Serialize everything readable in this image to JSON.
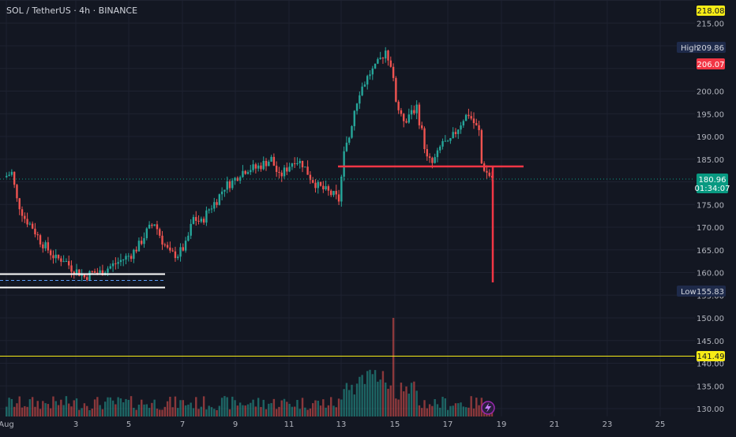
{
  "header": {
    "symbol_line": "SOL / TetherUS · 4h · BINANCE"
  },
  "indicator": {
    "icon": "lightning-icon"
  },
  "colors": {
    "background": "#131722",
    "grid": "#1e2230",
    "up": "#26a69a",
    "down": "#ef5350",
    "drawing_red": "#f23645",
    "support_yellow": "#f7ec16",
    "price_label_green": "#089981",
    "white_box": "#ffffff"
  },
  "price_labels": {
    "top_yellow": "218.08",
    "high_tag": "High",
    "high_value": "209.86",
    "red_level": "206.07",
    "current_price": "180.96",
    "countdown": "01:34:07",
    "low_tag": "Low",
    "low_value": "155.83",
    "support_yellow": "141.49"
  },
  "chart_data": {
    "type": "candlestick",
    "ylim": [
      128,
      220
    ],
    "y_ticks": [
      130,
      135,
      140,
      145,
      150,
      155,
      160,
      165,
      170,
      175,
      180,
      185,
      190,
      195,
      200,
      205,
      210,
      215,
      220
    ],
    "x_ticks": [
      "Aug",
      "3",
      "5",
      "7",
      "9",
      "11",
      "13",
      "15",
      "17",
      "19",
      "21",
      "23",
      "25"
    ],
    "ohlc_sample": [
      {
        "time": "Aug 1",
        "open": 181.5,
        "high": 182.5,
        "low": 178.0,
        "close": 179.0
      },
      {
        "time": "Aug 2",
        "open": 170.0,
        "high": 171.0,
        "low": 163.0,
        "close": 164.0
      },
      {
        "time": "Aug 3",
        "open": 158.5,
        "high": 161.0,
        "low": 156.0,
        "close": 160.0
      },
      {
        "time": "Aug 5",
        "open": 167.0,
        "high": 171.0,
        "low": 166.0,
        "close": 170.0
      },
      {
        "time": "Aug 7",
        "open": 170.0,
        "high": 174.5,
        "low": 169.0,
        "close": 174.0
      },
      {
        "time": "Aug 9",
        "open": 179.0,
        "high": 183.0,
        "low": 178.0,
        "close": 182.0
      },
      {
        "time": "Aug 11",
        "open": 182.0,
        "high": 186.0,
        "low": 180.0,
        "close": 185.0
      },
      {
        "time": "Aug 12",
        "open": 175.0,
        "high": 178.0,
        "low": 174.0,
        "close": 176.0
      },
      {
        "time": "Aug 13",
        "open": 184.0,
        "high": 192.0,
        "low": 183.0,
        "close": 191.0
      },
      {
        "time": "Aug 14",
        "open": 206.0,
        "high": 209.86,
        "low": 205.0,
        "close": 209.0
      },
      {
        "time": "Aug 15",
        "open": 190.0,
        "high": 192.0,
        "low": 186.0,
        "close": 188.0
      },
      {
        "time": "Aug 16",
        "open": 185.0,
        "high": 189.0,
        "low": 184.0,
        "close": 188.0
      },
      {
        "time": "Aug 17",
        "open": 193.0,
        "high": 196.0,
        "low": 192.0,
        "close": 195.0
      },
      {
        "time": "Aug 18",
        "open": 183.0,
        "high": 184.0,
        "low": 180.0,
        "close": 180.96
      }
    ]
  }
}
